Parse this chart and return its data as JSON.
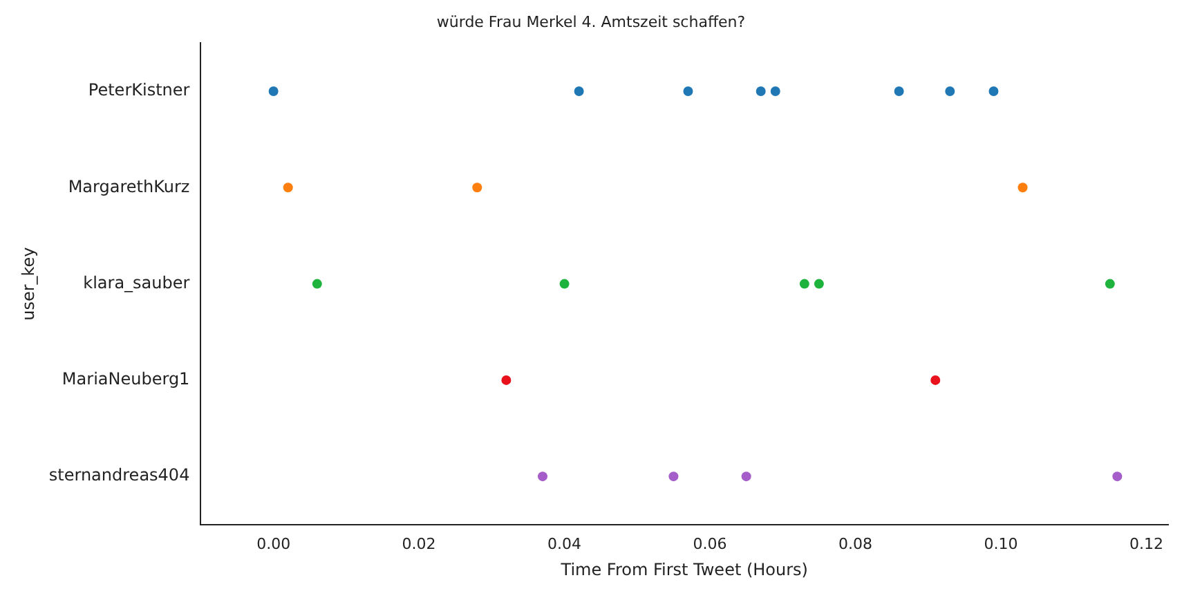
{
  "chart_data": {
    "type": "scatter",
    "orientation": "horizontal",
    "title": "würde Frau Merkel 4. Amtszeit schaffen?",
    "xlabel": "Time From First Tweet (Hours)",
    "ylabel": "user_key",
    "categories": [
      "PeterKistner",
      "MargarethKurz",
      "klara_sauber",
      "MariaNeuberg1",
      "sternandreas404"
    ],
    "series": [
      {
        "color": "#1f77b4",
        "x": [
          "PeterKistner",
          "PeterKistner",
          "PeterKistner",
          "PeterKistner",
          "PeterKistner",
          "PeterKistner",
          "PeterKistner",
          "PeterKistner"
        ],
        "values": [
          0.0,
          0.042,
          0.057,
          0.067,
          0.069,
          0.086,
          0.093,
          0.099
        ]
      },
      {
        "color": "#ff7f0e",
        "x": [
          "MargarethKurz",
          "MargarethKurz",
          "MargarethKurz"
        ],
        "values": [
          0.002,
          0.028,
          0.103
        ]
      },
      {
        "color": "#1db33c",
        "x": [
          "klara_sauber",
          "klara_sauber",
          "klara_sauber",
          "klara_sauber",
          "klara_sauber"
        ],
        "values": [
          0.006,
          0.04,
          0.073,
          0.075,
          0.115
        ]
      },
      {
        "color": "#e8111c",
        "x": [
          "MariaNeuberg1",
          "MariaNeuberg1"
        ],
        "values": [
          0.032,
          0.091
        ]
      },
      {
        "color": "#a45dc9",
        "x": [
          "sternandreas404",
          "sternandreas404",
          "sternandreas404",
          "sternandreas404"
        ],
        "values": [
          0.037,
          0.055,
          0.065,
          0.116
        ]
      }
    ],
    "xlim": [
      -0.01,
      0.123
    ],
    "xticks": [
      {
        "value": 0,
        "label": "0.00"
      },
      {
        "value": 0.02,
        "label": "0.02"
      },
      {
        "value": 0.04,
        "label": "0.04"
      },
      {
        "value": 0.06,
        "label": "0.06"
      },
      {
        "value": 0.08,
        "label": "0.08"
      },
      {
        "value": 0.1,
        "label": "0.10"
      },
      {
        "value": 0.12,
        "label": "0.12"
      }
    ],
    "grid": false,
    "legend": false,
    "marker": "circle"
  }
}
